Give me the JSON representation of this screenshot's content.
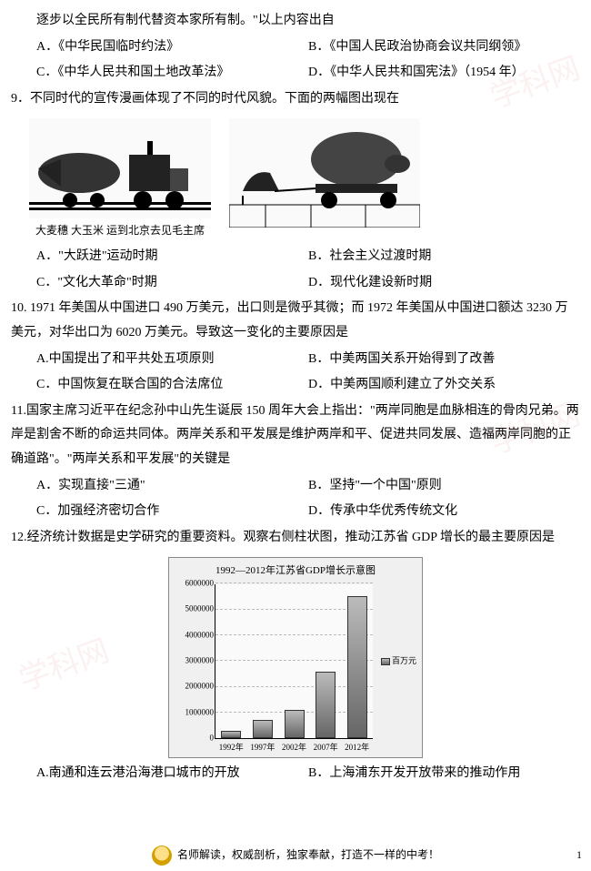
{
  "q8_stem_cont": "逐步以全民所有制代替资本家所有制。\"以上内容出自",
  "q8": {
    "A": "A．《中华民国临时约法》",
    "B": "B．《中国人民政治协商会议共同纲领》",
    "C": "C．《中华人民共和国土地改革法》",
    "D": "D．《中华人民共和国宪法》（1954 年）"
  },
  "q9_stem": "9．不同时代的宣传漫画体现了不同的时代风貌。下面的两幅图出现在",
  "q9_img1_alt": "火车拉大麦穗大玉米",
  "q9_img1_cap": "大麦穗 大玉米 运到北京去见毛主席",
  "q9_img2_alt": "牛拉巨型肥猪",
  "q9": {
    "A": "A．\"大跃进\"运动时期",
    "B": "B．社会主义过渡时期",
    "C": "C．\"文化大革命\"时期",
    "D": "D．现代化建设新时期"
  },
  "q10_stem": "10. 1971 年美国从中国进口 490 万美元，出口则是微乎其微；而 1972 年美国从中国进口额达 3230 万美元，对华出口为 6020 万美元。导致这一变化的主要原因是",
  "q10": {
    "A": "A.中国提出了和平共处五项原则",
    "B": "B．中美两国关系开始得到了改善",
    "C": "C．中国恢复在联合国的合法席位",
    "D": "D．中美两国顺利建立了外交关系"
  },
  "q11_stem": "11.国家主席习近平在纪念孙中山先生诞辰 150 周年大会上指出：\"两岸同胞是血脉相连的骨肉兄弟。两岸是割舍不断的命运共同体。两岸关系和平发展是维护两岸和平、促进共同发展、造福两岸同胞的正确道路\"。\"两岸关系和平发展\"的关键是",
  "q11": {
    "A": "A．实现直接\"三通\"",
    "B": "B．坚持\"一个中国\"原则",
    "C": "C．加强经济密切合作",
    "D": "D．传承中华优秀传统文化"
  },
  "q12_stem": "12.经济统计数据是史学研究的重要资料。观察右侧柱状图，推动江苏省 GDP 增长的最主要原因是",
  "q12_chart": {
    "type": "bar",
    "title": "1992—2012年江苏省GDP增长示意图",
    "categories": [
      "1992年",
      "1997年",
      "2002年",
      "2007年",
      "2012年"
    ],
    "values": [
      300000,
      700000,
      1100000,
      2600000,
      5500000
    ],
    "ylim": [
      0,
      6000000
    ],
    "ytick_step": 1000000,
    "yticks": [
      "0",
      "1000000",
      "2000000",
      "3000000",
      "4000000",
      "5000000",
      "6000000"
    ],
    "bar_color_gradient": [
      "#666666",
      "#bbbbbb"
    ],
    "legend_label": "百万元",
    "background_color": "#fafafa",
    "grid_color": "#bbbbbb"
  },
  "q12": {
    "A": "A.南通和连云港沿海港口城市的开放",
    "B": "B．上海浦东开发开放带来的推动作用"
  },
  "footer_text": "名师解读，权威剖析，独家奉献，打造不一样的中考！",
  "page_number": "1",
  "watermarks": [
    "学科网",
    "学科网",
    "学科网"
  ]
}
